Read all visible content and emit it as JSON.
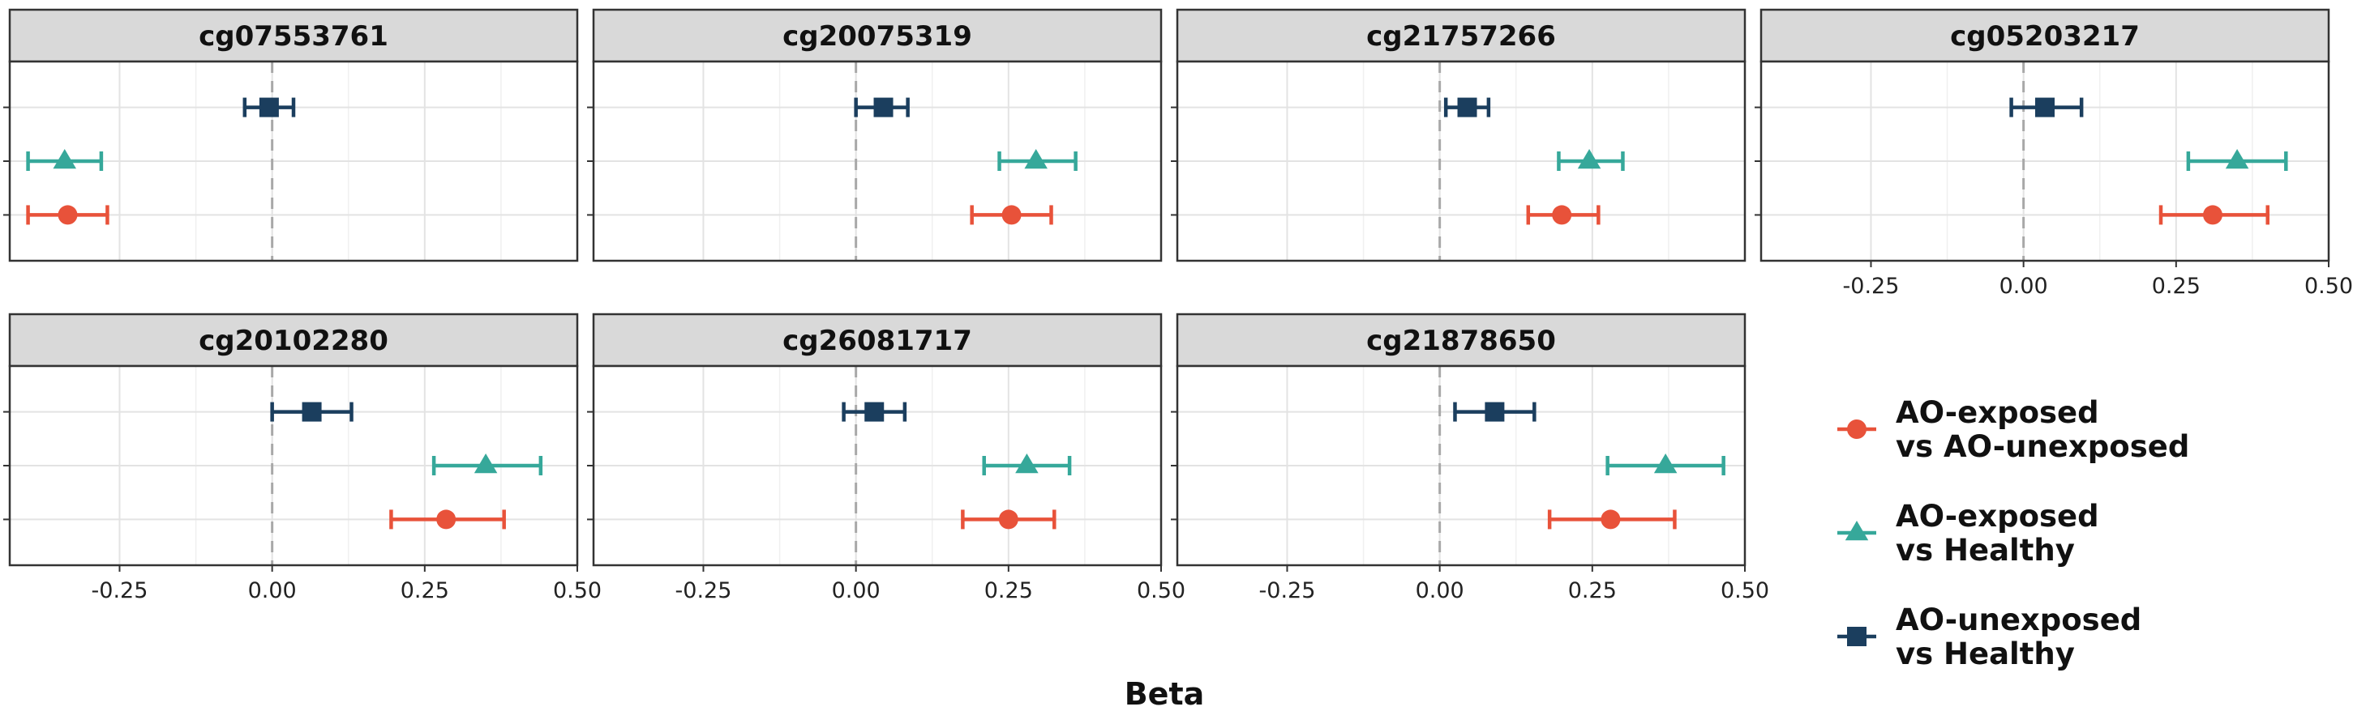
{
  "chart_data": {
    "type": "scatter",
    "subtype": "forest-plot-faceted",
    "xlabel": "Beta",
    "xlim": [
      -0.43,
      0.5
    ],
    "xticks": [
      -0.25,
      0.0,
      0.25,
      0.5
    ],
    "xtick_labels": [
      "-0.25",
      "0.00",
      "0.25",
      "0.50"
    ],
    "reference_line": 0,
    "grid": true,
    "legend_position": "right",
    "series": [
      {
        "key": "exp_unexp",
        "name_lines": [
          "AO-exposed",
          "vs AO-unexposed"
        ],
        "color": "#E8523A",
        "marker": "circle"
      },
      {
        "key": "exp_healthy",
        "name_lines": [
          "AO-exposed",
          "vs Healthy"
        ],
        "color": "#36A89A",
        "marker": "triangle"
      },
      {
        "key": "unexp_healthy",
        "name_lines": [
          "AO-unexposed",
          "vs Healthy"
        ],
        "color": "#1B3E5E",
        "marker": "square"
      }
    ],
    "panels": [
      {
        "title": "cg07553761",
        "estimates": [
          {
            "series": "unexp_healthy",
            "beta": -0.005,
            "lo": -0.045,
            "hi": 0.035
          },
          {
            "series": "exp_healthy",
            "beta": -0.34,
            "lo": -0.4,
            "hi": -0.28
          },
          {
            "series": "exp_unexp",
            "beta": -0.335,
            "lo": -0.4,
            "hi": -0.27
          }
        ]
      },
      {
        "title": "cg20075319",
        "estimates": [
          {
            "series": "unexp_healthy",
            "beta": 0.045,
            "lo": 0.0,
            "hi": 0.085
          },
          {
            "series": "exp_healthy",
            "beta": 0.295,
            "lo": 0.235,
            "hi": 0.36
          },
          {
            "series": "exp_unexp",
            "beta": 0.255,
            "lo": 0.19,
            "hi": 0.32
          }
        ]
      },
      {
        "title": "cg21757266",
        "estimates": [
          {
            "series": "unexp_healthy",
            "beta": 0.045,
            "lo": 0.01,
            "hi": 0.08
          },
          {
            "series": "exp_healthy",
            "beta": 0.245,
            "lo": 0.195,
            "hi": 0.3
          },
          {
            "series": "exp_unexp",
            "beta": 0.2,
            "lo": 0.145,
            "hi": 0.26
          }
        ]
      },
      {
        "title": "cg05203217",
        "estimates": [
          {
            "series": "unexp_healthy",
            "beta": 0.035,
            "lo": -0.02,
            "hi": 0.095
          },
          {
            "series": "exp_healthy",
            "beta": 0.35,
            "lo": 0.27,
            "hi": 0.43
          },
          {
            "series": "exp_unexp",
            "beta": 0.31,
            "lo": 0.225,
            "hi": 0.4
          }
        ]
      },
      {
        "title": "cg20102280",
        "estimates": [
          {
            "series": "unexp_healthy",
            "beta": 0.065,
            "lo": 0.0,
            "hi": 0.13
          },
          {
            "series": "exp_healthy",
            "beta": 0.35,
            "lo": 0.265,
            "hi": 0.44
          },
          {
            "series": "exp_unexp",
            "beta": 0.285,
            "lo": 0.195,
            "hi": 0.38
          }
        ]
      },
      {
        "title": "cg26081717",
        "estimates": [
          {
            "series": "unexp_healthy",
            "beta": 0.03,
            "lo": -0.02,
            "hi": 0.08
          },
          {
            "series": "exp_healthy",
            "beta": 0.28,
            "lo": 0.21,
            "hi": 0.35
          },
          {
            "series": "exp_unexp",
            "beta": 0.25,
            "lo": 0.175,
            "hi": 0.325
          }
        ]
      },
      {
        "title": "cg21878650",
        "estimates": [
          {
            "series": "unexp_healthy",
            "beta": 0.09,
            "lo": 0.025,
            "hi": 0.155
          },
          {
            "series": "exp_healthy",
            "beta": 0.37,
            "lo": 0.275,
            "hi": 0.465
          },
          {
            "series": "exp_unexp",
            "beta": 0.28,
            "lo": 0.18,
            "hi": 0.385
          }
        ]
      }
    ]
  }
}
